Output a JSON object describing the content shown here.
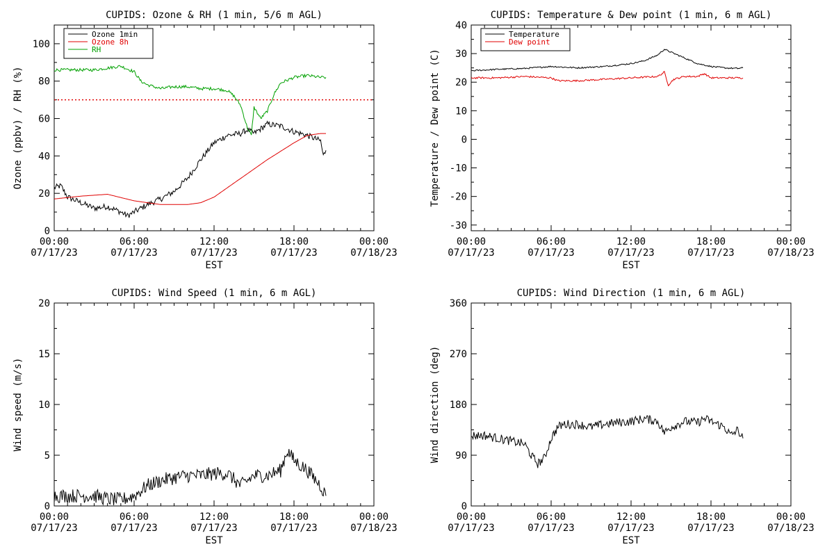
{
  "chart_data": [
    {
      "id": "ozone_rh",
      "type": "line",
      "title": "CUPIDS: Ozone & RH (1 min, 5/6 m AGL)",
      "xlabel": "EST",
      "ylabel": "Ozone (ppbv) / RH (%)",
      "xlim": [
        0,
        24
      ],
      "ylim": [
        0,
        110
      ],
      "yticks": [
        0,
        20,
        40,
        60,
        80,
        100
      ],
      "xticks": [
        0,
        6,
        12,
        18,
        24
      ],
      "xtick_labels": [
        [
          "00:00",
          "07/17/23"
        ],
        [
          "06:00",
          "07/17/23"
        ],
        [
          "12:00",
          "07/17/23"
        ],
        [
          "18:00",
          "07/17/23"
        ],
        [
          "00:00",
          "07/18/23"
        ]
      ],
      "legend": {
        "position": "top-left",
        "entries": [
          {
            "label": "Ozone 1min",
            "color": "#000000"
          },
          {
            "label": "Ozone 8h",
            "color": "#e00000"
          },
          {
            "label": "RH",
            "color": "#00a000"
          }
        ]
      },
      "reference_line": {
        "y": 70,
        "color": "#e00000",
        "style": "dotted"
      },
      "series": [
        {
          "name": "Ozone 1min",
          "color": "#000000",
          "noise": 1.6,
          "x": [
            0,
            0.5,
            1,
            2,
            3,
            4,
            5,
            5.5,
            6,
            7,
            8,
            9,
            10,
            11,
            12,
            13,
            14,
            14.5,
            15,
            16,
            17,
            18,
            19,
            20,
            20.2,
            20.4
          ],
          "y": [
            23,
            24,
            18,
            15,
            12,
            13,
            10,
            8,
            10,
            14,
            17,
            21,
            28,
            38,
            47,
            51,
            52,
            54,
            52,
            57,
            56,
            53,
            51,
            48,
            40,
            43
          ]
        },
        {
          "name": "Ozone 8h",
          "color": "#e00000",
          "noise": 0,
          "x": [
            0,
            2,
            4,
            6,
            8,
            10,
            11,
            12,
            14,
            16,
            18,
            19,
            20,
            20.4
          ],
          "y": [
            17,
            18.5,
            19.5,
            16,
            14,
            14,
            15,
            18,
            28,
            38,
            47,
            51,
            52,
            52
          ]
        },
        {
          "name": "RH",
          "color": "#00a000",
          "noise": 0.8,
          "x": [
            0,
            1,
            2,
            3,
            4,
            5,
            6,
            6.5,
            7,
            8,
            9,
            10,
            11,
            12,
            13,
            13.5,
            14,
            14.5,
            14.8,
            15,
            15.5,
            16,
            16.5,
            17,
            18,
            19,
            20,
            20.4
          ],
          "y": [
            86,
            86,
            86,
            86,
            87,
            88,
            85,
            80,
            78,
            76,
            77,
            77,
            76,
            76,
            75,
            72,
            67,
            55,
            51,
            66,
            60,
            64,
            73,
            79,
            82,
            83,
            82,
            82
          ]
        }
      ]
    },
    {
      "id": "temp_dew",
      "type": "line",
      "title": "CUPIDS: Temperature & Dew point (1 min, 6 m AGL)",
      "xlabel": "EST",
      "ylabel": "Temperature / Dew point (C)",
      "xlim": [
        0,
        24
      ],
      "ylim": [
        -32,
        40
      ],
      "yticks": [
        -30,
        -20,
        -10,
        0,
        10,
        20,
        30,
        40
      ],
      "xticks": [
        0,
        6,
        12,
        18,
        24
      ],
      "xtick_labels": [
        [
          "00:00",
          "07/17/23"
        ],
        [
          "06:00",
          "07/17/23"
        ],
        [
          "12:00",
          "07/17/23"
        ],
        [
          "18:00",
          "07/17/23"
        ],
        [
          "00:00",
          "07/18/23"
        ]
      ],
      "legend": {
        "position": "top-left",
        "entries": [
          {
            "label": "Temperature",
            "color": "#000000"
          },
          {
            "label": "Dew point",
            "color": "#e00000"
          }
        ]
      },
      "series": [
        {
          "name": "Temperature",
          "color": "#000000",
          "noise": 0.25,
          "x": [
            0,
            2,
            4,
            6,
            8,
            10,
            12,
            13,
            14,
            14.5,
            15,
            16,
            17,
            18,
            19,
            20,
            20.4
          ],
          "y": [
            24,
            24.5,
            24.8,
            25.5,
            25,
            25.5,
            26.5,
            27.5,
            29.5,
            31.5,
            30.5,
            28.5,
            26.5,
            25.5,
            25,
            24.8,
            25
          ]
        },
        {
          "name": "Dew point",
          "color": "#e00000",
          "noise": 0.3,
          "x": [
            0,
            2,
            4,
            6,
            6.5,
            8,
            10,
            12,
            14,
            14.5,
            14.8,
            15.2,
            16,
            17,
            17.5,
            18,
            19,
            20,
            20.4
          ],
          "y": [
            21.5,
            21.5,
            22,
            21.5,
            20.5,
            20.5,
            21,
            21.5,
            22,
            23.5,
            19,
            21,
            22,
            22,
            23,
            21.5,
            21.5,
            21.5,
            21.5
          ]
        }
      ]
    },
    {
      "id": "wind_speed",
      "type": "line",
      "title": "CUPIDS: Wind Speed (1 min, 6 m AGL)",
      "xlabel": "EST",
      "ylabel": "Wind speed (m/s)",
      "xlim": [
        0,
        24
      ],
      "ylim": [
        0,
        20
      ],
      "yticks": [
        0,
        5,
        10,
        15,
        20
      ],
      "xticks": [
        0,
        6,
        12,
        18,
        24
      ],
      "xtick_labels": [
        [
          "00:00",
          "07/17/23"
        ],
        [
          "06:00",
          "07/17/23"
        ],
        [
          "12:00",
          "07/17/23"
        ],
        [
          "18:00",
          "07/17/23"
        ],
        [
          "00:00",
          "07/18/23"
        ]
      ],
      "series": [
        {
          "name": "Wind speed",
          "color": "#000000",
          "noise": 0.7,
          "x": [
            0,
            1,
            2,
            3,
            4,
            5,
            6,
            7,
            8,
            9,
            10,
            11,
            12,
            13,
            14,
            15,
            16,
            17,
            17.5,
            18,
            19,
            20,
            20.4
          ],
          "y": [
            1,
            1,
            1,
            1,
            0.7,
            0.6,
            1,
            2,
            2.5,
            2.8,
            3,
            3,
            3.2,
            3.2,
            2,
            3,
            3,
            3.5,
            5.5,
            4.5,
            3.5,
            2,
            1
          ]
        }
      ]
    },
    {
      "id": "wind_dir",
      "type": "line",
      "title": "CUPIDS: Wind Direction (1 min, 6 m AGL)",
      "xlabel": "EST",
      "ylabel": "Wind direction (deg)",
      "xlim": [
        0,
        24
      ],
      "ylim": [
        0,
        360
      ],
      "yticks": [
        0,
        90,
        180,
        270,
        360
      ],
      "xticks": [
        0,
        6,
        12,
        18,
        24
      ],
      "xtick_labels": [
        [
          "00:00",
          "07/17/23"
        ],
        [
          "06:00",
          "07/17/23"
        ],
        [
          "12:00",
          "07/17/23"
        ],
        [
          "18:00",
          "07/17/23"
        ],
        [
          "00:00",
          "07/18/23"
        ]
      ],
      "series": [
        {
          "name": "Wind direction",
          "color": "#000000",
          "noise": 8,
          "x": [
            0,
            1,
            2,
            3,
            4,
            4.5,
            5,
            5.5,
            6,
            6.5,
            7,
            8,
            9,
            10,
            11,
            12,
            13,
            14,
            14.5,
            15,
            16,
            17,
            17.5,
            18,
            19,
            19.5,
            20,
            20.4
          ],
          "y": [
            125,
            125,
            120,
            115,
            110,
            90,
            75,
            85,
            120,
            140,
            145,
            145,
            140,
            145,
            148,
            150,
            155,
            150,
            130,
            140,
            150,
            148,
            155,
            150,
            140,
            125,
            135,
            120
          ]
        }
      ]
    }
  ]
}
